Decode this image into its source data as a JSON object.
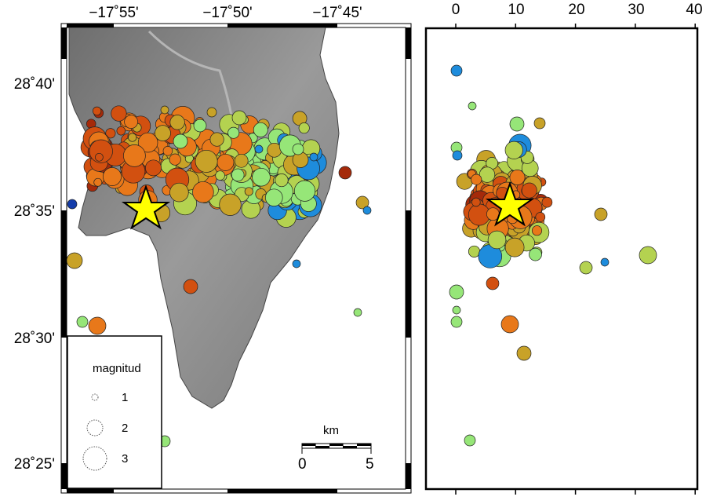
{
  "map": {
    "lon_labels": [
      "−17˚55'",
      "−17˚50'",
      "−17˚45'"
    ],
    "lat_labels": [
      "28˚40'",
      "28˚35'",
      "28˚30'",
      "28˚25'"
    ],
    "legend": {
      "title": "magnitud",
      "items": [
        "1",
        "2",
        "3"
      ]
    },
    "scale_bar": {
      "unit": "km",
      "start": "0",
      "end": "5"
    }
  },
  "depth_section": {
    "axis_labels": [
      "0",
      "10",
      "20",
      "30",
      "40"
    ],
    "x_ticks": [
      0,
      10,
      20,
      30,
      40
    ]
  },
  "colors": {
    "land": "#8c8c8c",
    "deep_red": "#a52a0a",
    "orange_red": "#d25010",
    "orange": "#e8781a",
    "ochre": "#c8a228",
    "yellow_green": "#b4d250",
    "light_green": "#96e678",
    "blue": "#1e8cdc",
    "navy": "#143caa",
    "star": "#ffff00"
  }
}
